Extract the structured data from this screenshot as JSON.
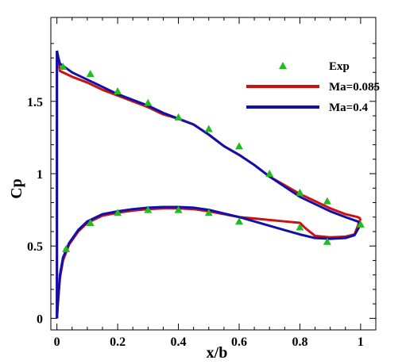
{
  "chart_data": {
    "type": "line",
    "xlabel": "x/b",
    "ylabel": "Cp",
    "xlim": [
      -0.02,
      1.05
    ],
    "ylim": [
      -0.08,
      2.08
    ],
    "x_ticks": [
      0,
      0.2,
      0.4,
      0.6,
      0.8,
      1
    ],
    "x_tick_labels": [
      "0",
      "0.2",
      "0.4",
      "0.6",
      "0.8",
      "1"
    ],
    "y_ticks": [
      0,
      0.5,
      1,
      1.5
    ],
    "y_tick_labels": [
      "0",
      "0.5",
      "1",
      "1.5"
    ],
    "grid": false,
    "legend_position": "top-right",
    "series": [
      {
        "name": "Exp",
        "kind": "scatter",
        "marker": "triangle",
        "color": "#22bb22",
        "points": [
          [
            0.02,
            1.74
          ],
          [
            0.11,
            1.69
          ],
          [
            0.2,
            1.57
          ],
          [
            0.3,
            1.49
          ],
          [
            0.4,
            1.39
          ],
          [
            0.5,
            1.31
          ],
          [
            0.6,
            1.19
          ],
          [
            0.7,
            1.0
          ],
          [
            0.8,
            0.87
          ],
          [
            0.89,
            0.81
          ],
          [
            1.0,
            0.65
          ],
          [
            0.03,
            0.48
          ],
          [
            0.11,
            0.66
          ],
          [
            0.2,
            0.73
          ],
          [
            0.3,
            0.75
          ],
          [
            0.4,
            0.75
          ],
          [
            0.5,
            0.73
          ],
          [
            0.6,
            0.67
          ],
          [
            0.8,
            0.63
          ],
          [
            0.89,
            0.53
          ]
        ]
      },
      {
        "name": "Ma=0.085",
        "kind": "line",
        "color": "#cc1111",
        "upper": [
          [
            0.0,
            1.85
          ],
          [
            0.005,
            1.78
          ],
          [
            0.01,
            1.71
          ],
          [
            0.03,
            1.69
          ],
          [
            0.05,
            1.67
          ],
          [
            0.1,
            1.63
          ],
          [
            0.15,
            1.58
          ],
          [
            0.2,
            1.54
          ],
          [
            0.25,
            1.5
          ],
          [
            0.3,
            1.46
          ],
          [
            0.35,
            1.41
          ],
          [
            0.4,
            1.38
          ],
          [
            0.45,
            1.34
          ],
          [
            0.5,
            1.27
          ],
          [
            0.55,
            1.19
          ],
          [
            0.6,
            1.13
          ],
          [
            0.65,
            1.06
          ],
          [
            0.7,
            0.98
          ],
          [
            0.75,
            0.92
          ],
          [
            0.8,
            0.86
          ],
          [
            0.85,
            0.81
          ],
          [
            0.9,
            0.76
          ],
          [
            0.95,
            0.72
          ],
          [
            0.99,
            0.7
          ],
          [
            1.0,
            0.69
          ]
        ],
        "lower": [
          [
            0.0,
            0.0
          ],
          [
            0.003,
            0.1
          ],
          [
            0.01,
            0.28
          ],
          [
            0.02,
            0.4
          ],
          [
            0.04,
            0.51
          ],
          [
            0.07,
            0.6
          ],
          [
            0.1,
            0.66
          ],
          [
            0.15,
            0.71
          ],
          [
            0.2,
            0.73
          ],
          [
            0.25,
            0.745
          ],
          [
            0.3,
            0.755
          ],
          [
            0.35,
            0.76
          ],
          [
            0.4,
            0.76
          ],
          [
            0.45,
            0.755
          ],
          [
            0.5,
            0.74
          ],
          [
            0.55,
            0.72
          ],
          [
            0.6,
            0.7
          ],
          [
            0.65,
            0.69
          ],
          [
            0.7,
            0.68
          ],
          [
            0.75,
            0.67
          ],
          [
            0.8,
            0.66
          ],
          [
            0.82,
            0.62
          ],
          [
            0.85,
            0.57
          ],
          [
            0.9,
            0.56
          ],
          [
            0.95,
            0.565
          ],
          [
            0.98,
            0.58
          ],
          [
            1.0,
            0.69
          ]
        ]
      },
      {
        "name": "Ma=0.4",
        "kind": "line",
        "color": "#1111aa",
        "upper": [
          [
            0.0,
            1.85
          ],
          [
            0.005,
            1.8
          ],
          [
            0.01,
            1.76
          ],
          [
            0.03,
            1.73
          ],
          [
            0.05,
            1.7
          ],
          [
            0.1,
            1.65
          ],
          [
            0.15,
            1.6
          ],
          [
            0.2,
            1.55
          ],
          [
            0.25,
            1.51
          ],
          [
            0.3,
            1.47
          ],
          [
            0.35,
            1.42
          ],
          [
            0.4,
            1.38
          ],
          [
            0.45,
            1.34
          ],
          [
            0.5,
            1.27
          ],
          [
            0.55,
            1.19
          ],
          [
            0.6,
            1.13
          ],
          [
            0.65,
            1.06
          ],
          [
            0.7,
            0.98
          ],
          [
            0.75,
            0.91
          ],
          [
            0.8,
            0.84
          ],
          [
            0.85,
            0.79
          ],
          [
            0.9,
            0.74
          ],
          [
            0.95,
            0.7
          ],
          [
            0.99,
            0.67
          ],
          [
            1.0,
            0.65
          ]
        ],
        "lower": [
          [
            0.0,
            0.0
          ],
          [
            0.003,
            0.1
          ],
          [
            0.01,
            0.3
          ],
          [
            0.02,
            0.42
          ],
          [
            0.04,
            0.52
          ],
          [
            0.07,
            0.61
          ],
          [
            0.1,
            0.67
          ],
          [
            0.15,
            0.72
          ],
          [
            0.2,
            0.74
          ],
          [
            0.25,
            0.755
          ],
          [
            0.3,
            0.765
          ],
          [
            0.35,
            0.77
          ],
          [
            0.4,
            0.77
          ],
          [
            0.45,
            0.765
          ],
          [
            0.5,
            0.75
          ],
          [
            0.55,
            0.725
          ],
          [
            0.6,
            0.7
          ],
          [
            0.65,
            0.67
          ],
          [
            0.7,
            0.64
          ],
          [
            0.75,
            0.61
          ],
          [
            0.8,
            0.58
          ],
          [
            0.85,
            0.555
          ],
          [
            0.9,
            0.55
          ],
          [
            0.95,
            0.555
          ],
          [
            0.98,
            0.575
          ],
          [
            1.0,
            0.65
          ]
        ]
      }
    ]
  }
}
